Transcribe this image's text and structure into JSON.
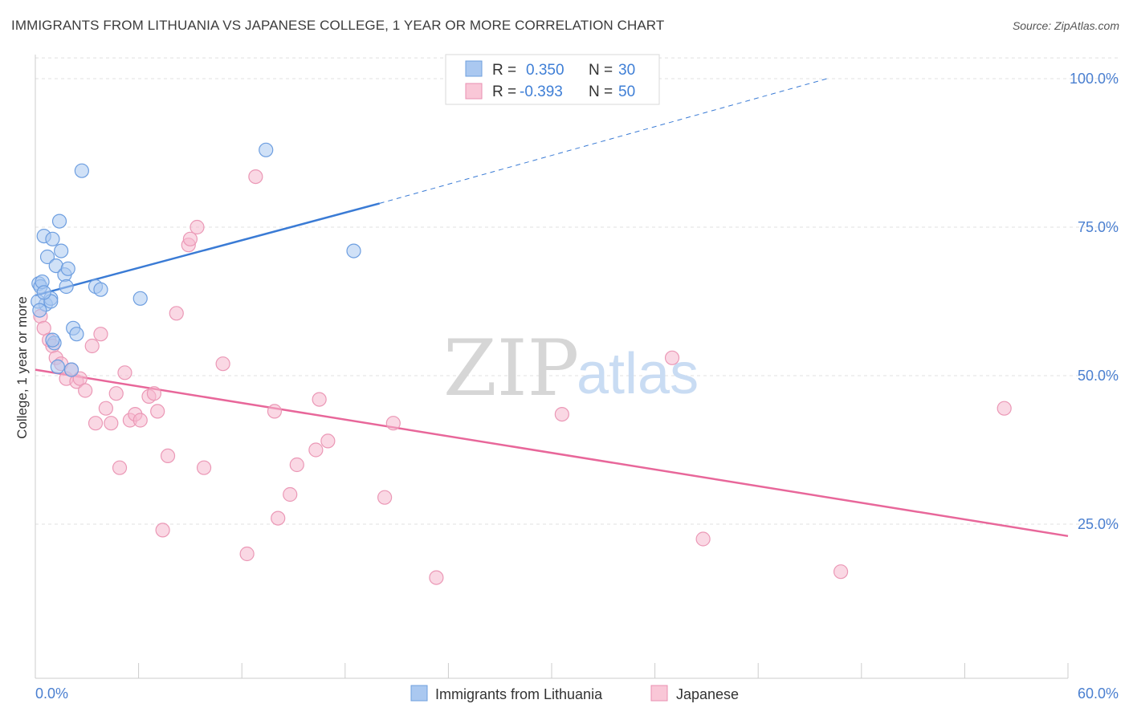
{
  "title": "IMMIGRANTS FROM LITHUANIA VS JAPANESE COLLEGE, 1 YEAR OR MORE CORRELATION CHART",
  "source": "Source: ZipAtlas.com",
  "watermark": {
    "zip": "ZIP",
    "atlas": "atlas"
  },
  "colors": {
    "blue": "#3a7bd5",
    "blue_fill": "#aac8f0",
    "pink": "#e8679a",
    "pink_fill": "#f5b8cd",
    "grid": "#e0e0e0"
  },
  "legend": {
    "rows": [
      {
        "r_label": "R =",
        "r_value": "0.350",
        "n_label": "N =",
        "n_value": "30"
      },
      {
        "r_label": "R =",
        "r_value": "-0.393",
        "n_label": "N =",
        "n_value": "50"
      }
    ]
  },
  "bottom_legend": [
    "Immigrants from Lithuania",
    "Japanese"
  ],
  "chart_data": {
    "type": "scatter",
    "xlabel": "",
    "ylabel": "College, 1 year or more",
    "xlim": [
      0,
      60
    ],
    "ylim": [
      0,
      105
    ],
    "x_tick_labels": [
      "0.0%",
      "60.0%"
    ],
    "y_tick_labels": [
      "100.0%",
      "75.0%",
      "50.0%",
      "25.0%"
    ],
    "y_ticks": [
      100,
      75,
      50,
      25
    ],
    "series": [
      {
        "name": "Immigrants from Lithuania",
        "color": "blue",
        "points": [
          [
            0.2,
            65.5
          ],
          [
            0.3,
            65.0
          ],
          [
            0.4,
            65.8
          ],
          [
            0.5,
            73.5
          ],
          [
            0.6,
            62.0
          ],
          [
            0.7,
            70.0
          ],
          [
            0.9,
            63.0
          ],
          [
            1.0,
            73.0
          ],
          [
            1.1,
            55.5
          ],
          [
            1.2,
            68.5
          ],
          [
            1.3,
            51.5
          ],
          [
            1.4,
            76.0
          ],
          [
            1.5,
            71.0
          ],
          [
            1.7,
            67.0
          ],
          [
            1.8,
            65.0
          ],
          [
            1.9,
            68.0
          ],
          [
            2.1,
            51.0
          ],
          [
            2.2,
            58.0
          ],
          [
            2.4,
            57.0
          ],
          [
            2.7,
            84.5
          ],
          [
            3.5,
            65.0
          ],
          [
            3.8,
            64.5
          ],
          [
            6.1,
            63.0
          ],
          [
            13.4,
            88.0
          ],
          [
            18.5,
            71.0
          ],
          [
            0.15,
            62.5
          ],
          [
            0.25,
            61.0
          ],
          [
            1.0,
            56.0
          ],
          [
            0.9,
            62.5
          ],
          [
            0.5,
            64.0
          ]
        ],
        "trend": {
          "x0": 0,
          "y0": 63.5,
          "x1": 20,
          "y1": 79.0,
          "dashed_x1": 46,
          "dashed_y1": 100
        }
      },
      {
        "name": "Japanese",
        "color": "pink",
        "points": [
          [
            0.3,
            60.0
          ],
          [
            0.5,
            58.0
          ],
          [
            0.8,
            56.0
          ],
          [
            1.0,
            55.0
          ],
          [
            1.2,
            53.0
          ],
          [
            1.5,
            52.0
          ],
          [
            1.8,
            49.5
          ],
          [
            2.1,
            51.0
          ],
          [
            2.4,
            49.0
          ],
          [
            2.6,
            49.5
          ],
          [
            2.9,
            47.5
          ],
          [
            3.3,
            55.0
          ],
          [
            3.5,
            42.0
          ],
          [
            3.8,
            57.0
          ],
          [
            4.1,
            44.5
          ],
          [
            4.4,
            42.0
          ],
          [
            4.7,
            47.0
          ],
          [
            4.9,
            34.5
          ],
          [
            5.2,
            50.5
          ],
          [
            5.5,
            42.5
          ],
          [
            5.8,
            43.5
          ],
          [
            6.1,
            42.5
          ],
          [
            6.6,
            46.5
          ],
          [
            6.9,
            47.0
          ],
          [
            7.1,
            44.0
          ],
          [
            7.4,
            24.0
          ],
          [
            7.7,
            36.5
          ],
          [
            8.2,
            60.5
          ],
          [
            8.9,
            72.0
          ],
          [
            9.4,
            75.0
          ],
          [
            9.8,
            34.5
          ],
          [
            10.9,
            52.0
          ],
          [
            12.3,
            20.0
          ],
          [
            12.8,
            83.5
          ],
          [
            13.9,
            44.0
          ],
          [
            14.1,
            26.0
          ],
          [
            14.8,
            30.0
          ],
          [
            15.2,
            35.0
          ],
          [
            16.3,
            37.5
          ],
          [
            16.5,
            46.0
          ],
          [
            17.0,
            39.0
          ],
          [
            20.3,
            29.5
          ],
          [
            20.8,
            42.0
          ],
          [
            23.3,
            16.0
          ],
          [
            30.6,
            43.5
          ],
          [
            37.0,
            53.0
          ],
          [
            38.8,
            22.5
          ],
          [
            46.8,
            17.0
          ],
          [
            56.3,
            44.5
          ],
          [
            9.0,
            73.0
          ]
        ],
        "trend": {
          "x0": 0,
          "y0": 51.0,
          "x1": 60,
          "y1": 23.0
        }
      }
    ]
  }
}
